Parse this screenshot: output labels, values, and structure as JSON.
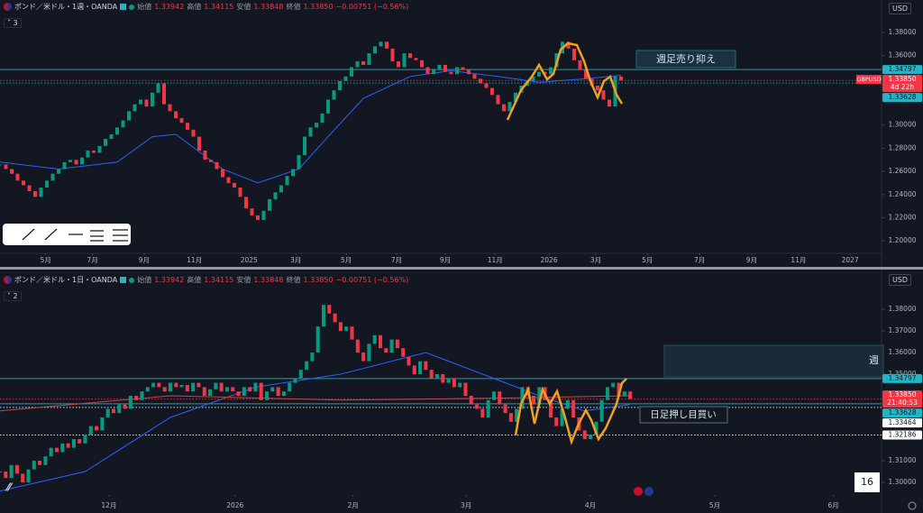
{
  "ui": {
    "currency": "USD",
    "badge": "16"
  },
  "chart_data": [
    {
      "type": "candlestick",
      "title": "ポンド／米ドル・1週・OANDA",
      "indicator_count": "3",
      "ohlc": [
        {
          "label": "始値",
          "value": "1.33942"
        },
        {
          "label": "高値",
          "value": "1.34115"
        },
        {
          "label": "安値",
          "value": "1.33848"
        },
        {
          "label": "終値",
          "value": "1.33850"
        }
      ],
      "change": "−0.00751 (−0.56%)",
      "up_color": "#089981",
      "down_color": "#f23645",
      "values": [
        1.266,
        1.262,
        1.258,
        1.252,
        1.248,
        1.243,
        1.238,
        1.246,
        1.252,
        1.258,
        1.262,
        1.268,
        1.27,
        1.266,
        1.272,
        1.278,
        1.276,
        1.282,
        1.288,
        1.292,
        1.298,
        1.304,
        1.312,
        1.318,
        1.322,
        1.316,
        1.328,
        1.336,
        1.318,
        1.312,
        1.306,
        1.302,
        1.296,
        1.29,
        1.278,
        1.27,
        1.268,
        1.262,
        1.255,
        1.25,
        1.246,
        1.238,
        1.228,
        1.222,
        1.218,
        1.226,
        1.236,
        1.242,
        1.248,
        1.256,
        1.262,
        1.274,
        1.29,
        1.298,
        1.302,
        1.31,
        1.322,
        1.33,
        1.338,
        1.342,
        1.35,
        1.355,
        1.352,
        1.362,
        1.368,
        1.372,
        1.366,
        1.355,
        1.35,
        1.362,
        1.358,
        1.356,
        1.35,
        1.344,
        1.348,
        1.352,
        1.346,
        1.344,
        1.35,
        1.348,
        1.344,
        1.34,
        1.336,
        1.332,
        1.326,
        1.318,
        1.312,
        1.32,
        1.328,
        1.334,
        1.338,
        1.342,
        1.346,
        1.344,
        1.35,
        1.362,
        1.372,
        1.366,
        1.356,
        1.348,
        1.34,
        1.334,
        1.33,
        1.322,
        1.316,
        1.342,
        1.3385
      ],
      "lines": [
        {
          "color": "#2962ff",
          "x": [
            0,
            10,
            20,
            26,
            30,
            38,
            44,
            51,
            56,
            62,
            70,
            77,
            85,
            92,
            100,
            106
          ],
          "values": [
            1.268,
            1.262,
            1.268,
            1.29,
            1.292,
            1.262,
            1.25,
            1.262,
            1.29,
            1.323,
            1.342,
            1.347,
            1.342,
            1.337,
            1.34,
            1.343
          ]
        }
      ],
      "xlim": [
        0,
        150
      ],
      "ylim": [
        1.19,
        1.394
      ],
      "xticks": [
        {
          "value": 7.8,
          "label": "5月"
        },
        {
          "value": 15.8,
          "label": "7月"
        },
        {
          "value": 24.6,
          "label": "9月"
        },
        {
          "value": 33.2,
          "label": "11月"
        },
        {
          "value": 42.5,
          "label": "2025"
        },
        {
          "value": 50.5,
          "label": "3月"
        },
        {
          "value": 59.1,
          "label": "5月"
        },
        {
          "value": 67.7,
          "label": "7月"
        },
        {
          "value": 76,
          "label": "9月"
        },
        {
          "value": 84.5,
          "label": "11月"
        },
        {
          "value": 93.7,
          "label": "2026"
        },
        {
          "value": 101.7,
          "label": "3月"
        },
        {
          "value": 110.5,
          "label": "5月"
        },
        {
          "value": 119.4,
          "label": "7月"
        },
        {
          "value": 128.3,
          "label": "9月"
        },
        {
          "value": 136.3,
          "label": "11月"
        },
        {
          "value": 145.1,
          "label": "2027"
        }
      ],
      "yticks": [
        {
          "value": 1.2,
          "label": "1.20000"
        },
        {
          "value": 1.22,
          "label": "1.22000"
        },
        {
          "value": 1.24,
          "label": "1.24000"
        },
        {
          "value": 1.26,
          "label": "1.26000"
        },
        {
          "value": 1.28,
          "label": "1.28000"
        },
        {
          "value": 1.3,
          "label": "1.30000"
        },
        {
          "value": 1.36,
          "label": "1.36000"
        },
        {
          "value": 1.38,
          "label": "1.38000"
        }
      ],
      "price_tags": [
        {
          "value": 1.34797,
          "label": "1.34797",
          "color": "#22b5c8",
          "line": "solid"
        },
        {
          "value": 1.3385,
          "label": "1.33850",
          "color": "#f23645",
          "line": "dotted",
          "symbol": "GBPUSD",
          "sub": "4d 22h"
        },
        {
          "value": 1.33628,
          "label": "1.33628",
          "color": "#22b5c8",
          "line": "dotted"
        }
      ],
      "annotations": [
        "週足売り抑え"
      ]
    },
    {
      "type": "candlestick",
      "title": "ポンド／米ドル・1日・OANDA",
      "indicator_count": "2",
      "ohlc": [
        {
          "label": "始値",
          "value": "1.33942"
        },
        {
          "label": "高値",
          "value": "1.34115"
        },
        {
          "label": "安値",
          "value": "1.33848"
        },
        {
          "label": "終値",
          "value": "1.33850"
        }
      ],
      "change": "−0.00751 (−0.56%)",
      "up_color": "#089981",
      "down_color": "#f23645",
      "values": [
        1.305,
        1.302,
        1.308,
        1.304,
        1.3,
        1.306,
        1.31,
        1.308,
        1.312,
        1.316,
        1.314,
        1.318,
        1.316,
        1.32,
        1.318,
        1.322,
        1.326,
        1.324,
        1.33,
        1.334,
        1.332,
        1.336,
        1.334,
        1.34,
        1.338,
        1.342,
        1.344,
        1.346,
        1.344,
        1.342,
        1.346,
        1.344,
        1.345,
        1.342,
        1.346,
        1.344,
        1.34,
        1.343,
        1.346,
        1.342,
        1.344,
        1.342,
        1.34,
        1.344,
        1.342,
        1.346,
        1.338,
        1.342,
        1.344,
        1.34,
        1.342,
        1.346,
        1.348,
        1.352,
        1.356,
        1.36,
        1.372,
        1.382,
        1.378,
        1.374,
        1.37,
        1.372,
        1.366,
        1.36,
        1.356,
        1.364,
        1.368,
        1.362,
        1.36,
        1.366,
        1.362,
        1.358,
        1.354,
        1.35,
        1.356,
        1.352,
        1.348,
        1.35,
        1.346,
        1.348,
        1.344,
        1.346,
        1.34,
        1.336,
        1.334,
        1.33,
        1.338,
        1.342,
        1.336,
        1.332,
        1.328,
        1.334,
        1.344,
        1.34,
        1.336,
        1.344,
        1.338,
        1.33,
        1.326,
        1.334,
        1.338,
        1.33,
        1.324,
        1.32,
        1.322,
        1.328,
        1.338,
        1.344,
        1.346,
        1.34,
        1.342,
        1.3385
      ],
      "lines": [
        {
          "color": "#2962ff",
          "x": [
            0,
            15,
            30,
            45,
            60,
            75,
            85,
            95,
            103,
            111
          ],
          "values": [
            1.296,
            1.305,
            1.33,
            1.344,
            1.35,
            1.36,
            1.35,
            1.34,
            1.333,
            1.336
          ]
        },
        {
          "color": "#b2504a",
          "x": [
            0,
            30,
            60,
            90,
            111
          ],
          "values": [
            1.333,
            1.34,
            1.338,
            1.339,
            1.34
          ]
        }
      ],
      "xlim": [
        0,
        154.8
      ],
      "ylim": [
        1.2946,
        1.3904
      ],
      "xticks": [
        {
          "value": 19.2,
          "label": "12月"
        },
        {
          "value": 41.4,
          "label": "2026"
        },
        {
          "value": 62.2,
          "label": "2月"
        },
        {
          "value": 82.1,
          "label": "3月"
        },
        {
          "value": 104,
          "label": "4月"
        },
        {
          "value": 125.9,
          "label": "5月"
        },
        {
          "value": 146.8,
          "label": "6月"
        }
      ],
      "yticks": [
        {
          "value": 1.3,
          "label": "1.30000"
        },
        {
          "value": 1.31,
          "label": "1.31000"
        },
        {
          "value": 1.35,
          "label": "1.35000"
        },
        {
          "value": 1.36,
          "label": "1.36000"
        },
        {
          "value": 1.37,
          "label": "1.37000"
        },
        {
          "value": 1.38,
          "label": "1.38000"
        }
      ],
      "price_tags": [
        {
          "value": 1.34797,
          "label": "1.34797",
          "color": "#22b5c8",
          "line": "solid"
        },
        {
          "value": 1.3385,
          "label": "1.33850",
          "color": "#f23645",
          "line": "dotted",
          "sub": "21:40:53"
        },
        {
          "value": 1.33628,
          "label": "1.33628",
          "color": "#22b5c8",
          "line": "solid"
        },
        {
          "value": 1.33464,
          "label": "1.33464",
          "color": "#ffffff",
          "line": "dotted"
        },
        {
          "value": 1.32186,
          "label": "1.32186",
          "color": "#ffffff",
          "line": "dotted"
        }
      ],
      "annotations": [
        "日足押し目買い",
        "週"
      ]
    }
  ]
}
